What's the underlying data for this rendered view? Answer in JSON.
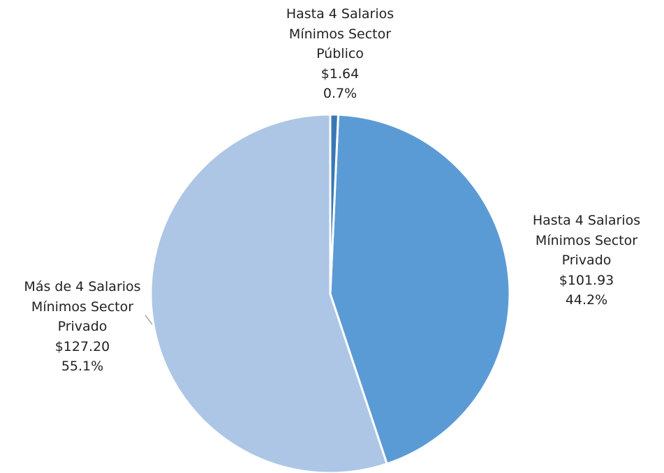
{
  "chart_data": {
    "type": "pie",
    "categories": [
      "Hasta 4 Salarios Mínimos Sector Público",
      "Hasta 4 Salarios Mínimos Sector Privado",
      "Más de 4 Salarios Mínimos Sector Privado"
    ],
    "values": [
      1.64,
      101.93,
      127.2
    ],
    "value_labels": [
      "$1.64",
      "$101.93",
      "$127.20"
    ],
    "percentages": [
      0.7,
      44.2,
      55.1
    ],
    "percentage_labels": [
      "0.7%",
      "44.2%",
      "55.1%"
    ],
    "colors": [
      "#3a78b5",
      "#5b9bd5",
      "#adc6e6"
    ]
  }
}
